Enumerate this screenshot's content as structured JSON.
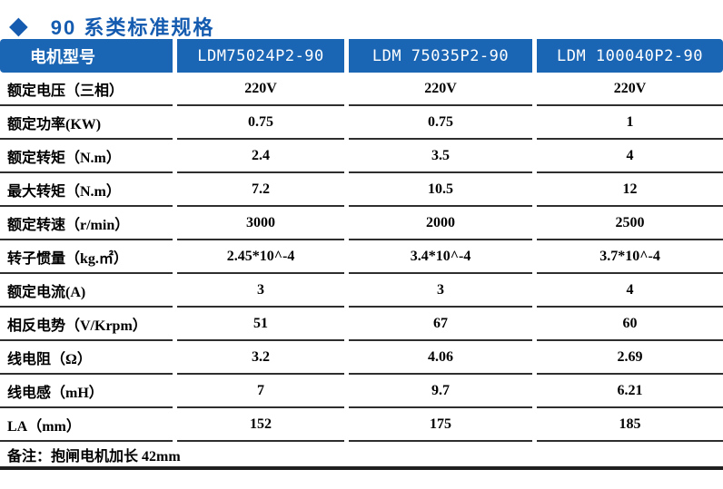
{
  "title": {
    "diamond_icon": "◆",
    "text": "90 系类标准规格"
  },
  "colors": {
    "accent": "#155cb0",
    "header_bg": "#1a65b4",
    "border": "#2e2e2e",
    "heavy_border": "#1f1f1f",
    "header_text": "#ffffff"
  },
  "table": {
    "header": [
      "电机型号",
      "LDM75024P2-90",
      "LDM 75035P2-90",
      "LDM 100040P2-90"
    ],
    "rows": [
      {
        "label": "额定电压（三相）",
        "values": [
          "220V",
          "220V",
          "220V"
        ]
      },
      {
        "label": "额定功率(KW)",
        "values": [
          "0.75",
          "0.75",
          "1"
        ]
      },
      {
        "label": "额定转矩（N.m）",
        "values": [
          "2.4",
          "3.5",
          "4"
        ]
      },
      {
        "label": "最大转矩（N.m）",
        "values": [
          "7.2",
          "10.5",
          "12"
        ]
      },
      {
        "label": "额定转速（r/min）",
        "values": [
          "3000",
          "2000",
          "2500"
        ]
      },
      {
        "label": "转子惯量（kg.㎡）",
        "values": [
          "2.45*10^-4",
          "3.4*10^-4",
          "3.7*10^-4"
        ]
      },
      {
        "label": "额定电流(A)",
        "values": [
          "3",
          "3",
          "4"
        ]
      },
      {
        "label": "相反电势（V/Krpm）",
        "values": [
          "51",
          "67",
          "60"
        ]
      },
      {
        "label": "线电阻（Ω）",
        "values": [
          "3.2",
          "4.06",
          "2.69"
        ]
      },
      {
        "label": "线电感（mH）",
        "values": [
          "7",
          "9.7",
          "6.21"
        ]
      },
      {
        "label": "LA（mm）",
        "values": [
          "152",
          "175",
          "185"
        ]
      }
    ],
    "footnote": "备注：抱闸电机加长 42mm"
  }
}
